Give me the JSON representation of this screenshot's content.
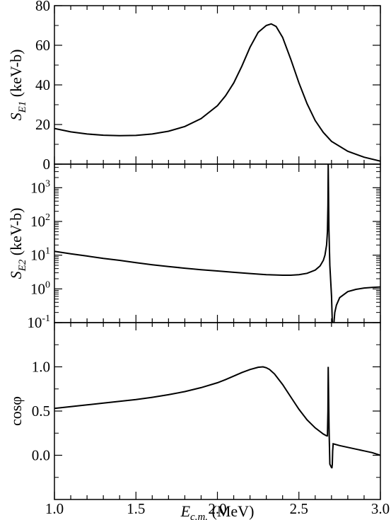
{
  "chart_data": {
    "type": "line",
    "x": {
      "label": "E",
      "label_sub": "c.m.",
      "label_unit": " (MeV)",
      "range": [
        1.0,
        3.0
      ],
      "ticks": [
        1.0,
        1.5,
        2.0,
        2.5,
        3.0
      ],
      "tick_labels": [
        "1.0",
        "1.5",
        "2.0",
        "2.5",
        "3.0"
      ]
    },
    "panels": [
      {
        "id": "SE1",
        "scale": "linear",
        "ylabel": "S",
        "ylabel_sub": "E1",
        "ylabel_unit": " (keV-b)",
        "ylim": [
          0,
          80
        ],
        "ticks": [
          0,
          20,
          40,
          60,
          80
        ],
        "tick_labels": [
          "0",
          "20",
          "40",
          "60",
          "80"
        ],
        "series": [
          {
            "x": [
              1.0,
              1.1,
              1.2,
              1.3,
              1.4,
              1.5,
              1.6,
              1.7,
              1.8,
              1.9,
              2.0,
              2.05,
              2.1,
              2.15,
              2.2,
              2.25,
              2.3,
              2.33,
              2.36,
              2.4,
              2.45,
              2.5,
              2.55,
              2.6,
              2.65,
              2.7,
              2.8,
              2.9,
              3.0
            ],
            "y": [
              18,
              16.3,
              15.2,
              14.6,
              14.4,
              14.5,
              15.2,
              16.6,
              19.0,
              23.0,
              29.5,
              34.5,
              41.0,
              49.5,
              59.0,
              66.5,
              70.0,
              70.8,
              69.5,
              64.0,
              53.0,
              41.0,
              30.5,
              22.0,
              16.0,
              11.5,
              6.5,
              3.5,
              1.5
            ]
          }
        ]
      },
      {
        "id": "SE2",
        "scale": "log",
        "ylabel": "S",
        "ylabel_sub": "E2",
        "ylabel_unit": " (keV-b)",
        "ylim": [
          0.1,
          5000
        ],
        "ticks": [
          0.1,
          1,
          10,
          100,
          1000
        ],
        "tick_labels": [
          {
            "base": "10",
            "exp": "-1"
          },
          {
            "base": "10",
            "exp": "0"
          },
          {
            "base": "10",
            "exp": "1"
          },
          {
            "base": "10",
            "exp": "2"
          },
          {
            "base": "10",
            "exp": "3"
          }
        ],
        "series": [
          {
            "x": [
              1.0,
              1.1,
              1.2,
              1.3,
              1.4,
              1.5,
              1.6,
              1.7,
              1.8,
              1.9,
              2.0,
              2.1,
              2.2,
              2.3,
              2.4,
              2.45,
              2.5,
              2.55,
              2.6,
              2.63,
              2.65,
              2.66,
              2.67,
              2.675,
              2.678,
              2.68,
              2.684,
              2.69,
              2.7,
              2.705
            ],
            "y": [
              13,
              11,
              9.4,
              8.0,
              7.0,
              6.0,
              5.2,
              4.6,
              4.1,
              3.7,
              3.4,
              3.1,
              2.85,
              2.65,
              2.55,
              2.55,
              2.65,
              2.9,
              3.6,
              4.8,
              7.0,
              10,
              20,
              50,
              300,
              5000,
              60,
              5,
              0.6,
              0.1
            ]
          },
          {
            "x": [
              2.715,
              2.72,
              2.73,
              2.75,
              2.8,
              2.85,
              2.9,
              2.95,
              3.0
            ],
            "y": [
              0.1,
              0.2,
              0.33,
              0.55,
              0.83,
              0.97,
              1.06,
              1.11,
              1.14
            ]
          }
        ]
      },
      {
        "id": "cosphi",
        "scale": "linear",
        "ylabel": "cosφ",
        "ylim": [
          -0.5,
          1.5
        ],
        "ticks": [
          0.0,
          0.5,
          1.0
        ],
        "tick_labels": [
          "0.0",
          "0.5",
          "1.0"
        ],
        "series": [
          {
            "x": [
              1.0,
              1.1,
              1.2,
              1.3,
              1.4,
              1.5,
              1.6,
              1.7,
              1.8,
              1.9,
              2.0,
              2.05,
              2.1,
              2.15,
              2.2,
              2.25,
              2.28,
              2.3,
              2.32,
              2.35,
              2.4,
              2.45,
              2.5,
              2.55,
              2.6,
              2.65,
              2.67,
              2.675,
              2.678,
              2.68,
              2.685,
              2.69,
              2.7,
              2.703,
              2.705,
              2.707,
              2.71,
              2.75,
              2.8,
              2.85,
              2.9,
              2.95,
              3.0
            ],
            "y": [
              0.53,
              0.55,
              0.57,
              0.59,
              0.61,
              0.63,
              0.655,
              0.685,
              0.72,
              0.765,
              0.82,
              0.855,
              0.895,
              0.935,
              0.97,
              0.995,
              1.0,
              0.99,
              0.97,
              0.92,
              0.8,
              0.66,
              0.52,
              0.4,
              0.31,
              0.24,
              0.22,
              0.22,
              0.5,
              1.0,
              0.3,
              -0.1,
              -0.14,
              -0.14,
              -0.1,
              0.05,
              0.13,
              0.11,
              0.09,
              0.07,
              0.05,
              0.03,
              0.0
            ]
          }
        ]
      }
    ]
  }
}
